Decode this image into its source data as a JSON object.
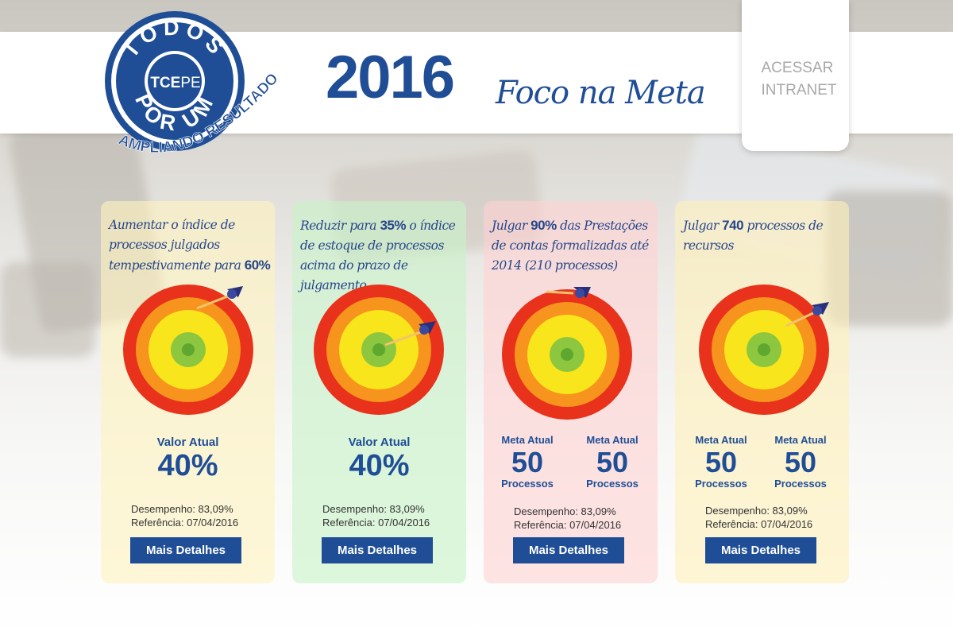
{
  "header": {
    "year": "2016",
    "tagline": "Foco na Meta",
    "intranet_line1": "ACESSAR",
    "intranet_line2": "INTRANET",
    "logo": {
      "top_text": "TODOS",
      "center_text_1": "TCE",
      "center_text_2": "PE",
      "bottom_text": "POR UM",
      "ribbon_text": "AMPLIANDO RESULTADOS"
    }
  },
  "cards": [
    {
      "goal_pre": "Aumentar o índice de processos julgados tempestivamente para ",
      "goal_strong": "60%",
      "goal_post": "",
      "valor_label": "Valor Atual",
      "valor_value": "40%",
      "desempenho": "Desempenho: 83,09%",
      "referencia": "Referência: 07/04/2016",
      "button": "Mais Detalhes"
    },
    {
      "goal_pre": "Reduzir para ",
      "goal_strong": "35%",
      "goal_post": "  o índice de estoque de processos acima do prazo de julgamento",
      "valor_label": "Valor Atual",
      "valor_value": "40%",
      "desempenho": "Desempenho: 83,09%",
      "referencia": "Referência: 07/04/2016",
      "button": "Mais Detalhes"
    },
    {
      "goal_pre": "Julgar ",
      "goal_strong": "90%",
      "goal_post": " das Prestações de contas formalizadas até 2014 (210 processos)",
      "meta_label_1": "Meta Atual",
      "meta_value_1": "50",
      "meta_unit_1": "Processos",
      "meta_label_2": "Meta Atual",
      "meta_value_2": "50",
      "meta_unit_2": "Processos",
      "desempenho": "Desempenho: 83,09%",
      "referencia": "Referência: 07/04/2016",
      "button": "Mais Detalhes"
    },
    {
      "goal_pre": "Julgar ",
      "goal_strong": "740",
      "goal_post": "  processos de recursos",
      "meta_label_1": "Meta Atual",
      "meta_value_1": "50",
      "meta_unit_1": "Processos",
      "meta_label_2": "Meta Atual",
      "meta_value_2": "50",
      "meta_unit_2": "Processos",
      "desempenho": "Desempenho: 83,09%",
      "referencia": "Referência: 07/04/2016",
      "button": "Mais Detalhes"
    }
  ],
  "colors": {
    "brand_blue": "#1f4e96",
    "target_outer": "#e8321b",
    "target_orange": "#f7941d",
    "target_yellow": "#f9e51b",
    "target_center": "#8dc63f"
  }
}
